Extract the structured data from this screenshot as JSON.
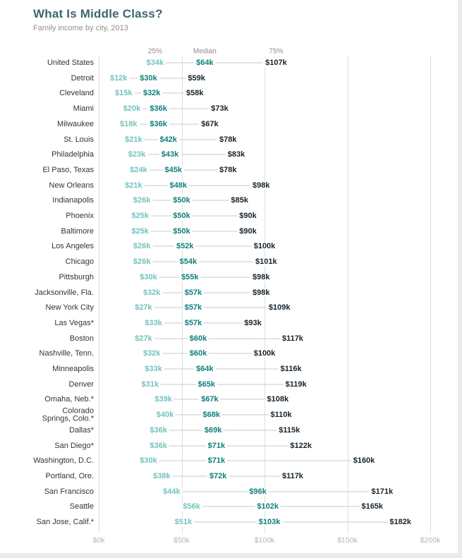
{
  "title": "What Is Middle Class?",
  "subtitle": "Family income by city, 2013",
  "chart_data": {
    "type": "scatter",
    "variant": "dot-range-plot",
    "column_headers": [
      "25%",
      "Median",
      "75%"
    ],
    "value_format": "$[value]k",
    "unit": "thousand USD per year",
    "xlim": [
      0,
      200
    ],
    "x_ticks": [
      "$0k",
      "$50k",
      "$100k",
      "$150k",
      "$200k"
    ],
    "x_tick_values": [
      0,
      50,
      100,
      150,
      200
    ],
    "grid": "vertical",
    "colors": {
      "p25": "#72c3bd",
      "median": "#0d7f7b",
      "p75": "#16232c",
      "connector": "#c9c9c9",
      "grid": "#dedede",
      "title": "#3e6570",
      "subtitle": "#8f8f8f"
    },
    "rows": [
      {
        "city": "United States",
        "p25": 34,
        "median": 64,
        "p75": 107
      },
      {
        "city": "Detroit",
        "p25": 12,
        "median": 30,
        "p75": 59
      },
      {
        "city": "Cleveland",
        "p25": 15,
        "median": 32,
        "p75": 58
      },
      {
        "city": "Miami",
        "p25": 20,
        "median": 36,
        "p75": 73
      },
      {
        "city": "Milwaukee",
        "p25": 18,
        "median": 36,
        "p75": 67
      },
      {
        "city": "St. Louis",
        "p25": 21,
        "median": 42,
        "p75": 78
      },
      {
        "city": "Philadelphia",
        "p25": 23,
        "median": 43,
        "p75": 83
      },
      {
        "city": "El Paso, Texas",
        "p25": 24,
        "median": 45,
        "p75": 78
      },
      {
        "city": "New Orleans",
        "p25": 21,
        "median": 48,
        "p75": 98
      },
      {
        "city": "Indianapolis",
        "p25": 26,
        "median": 50,
        "p75": 85
      },
      {
        "city": "Phoenix",
        "p25": 25,
        "median": 50,
        "p75": 90
      },
      {
        "city": "Baltimore",
        "p25": 25,
        "median": 50,
        "p75": 90
      },
      {
        "city": "Los Angeles",
        "p25": 26,
        "median": 52,
        "p75": 100
      },
      {
        "city": "Chicago",
        "p25": 26,
        "median": 54,
        "p75": 101
      },
      {
        "city": "Pittsburgh",
        "p25": 30,
        "median": 55,
        "p75": 98
      },
      {
        "city": "Jacksonville, Fla.",
        "p25": 32,
        "median": 57,
        "p75": 98
      },
      {
        "city": "New York City",
        "p25": 27,
        "median": 57,
        "p75": 109
      },
      {
        "city": "Las Vegas*",
        "p25": 33,
        "median": 57,
        "p75": 93
      },
      {
        "city": "Boston",
        "p25": 27,
        "median": 60,
        "p75": 117
      },
      {
        "city": "Nashville, Tenn.",
        "p25": 32,
        "median": 60,
        "p75": 100
      },
      {
        "city": "Minneapolis",
        "p25": 33,
        "median": 64,
        "p75": 116
      },
      {
        "city": "Denver",
        "p25": 31,
        "median": 65,
        "p75": 119
      },
      {
        "city": "Omaha, Neb.*",
        "p25": 39,
        "median": 67,
        "p75": 108
      },
      {
        "city": "Colorado Springs, Colo.*",
        "display_lines": [
          "Colorado",
          "Springs, Colo.*"
        ],
        "p25": 40,
        "median": 68,
        "p75": 110
      },
      {
        "city": "Dallas*",
        "p25": 36,
        "median": 69,
        "p75": 115
      },
      {
        "city": "San Diego*",
        "p25": 36,
        "median": 71,
        "p75": 122
      },
      {
        "city": "Washington, D.C.",
        "p25": 30,
        "median": 71,
        "p75": 160
      },
      {
        "city": "Portland, Ore.",
        "p25": 38,
        "median": 72,
        "p75": 117
      },
      {
        "city": "San Francisco",
        "p25": 44,
        "median": 96,
        "p75": 171
      },
      {
        "city": "Seattle",
        "p25": 56,
        "median": 102,
        "p75": 165
      },
      {
        "city": "San Jose, Calif.*",
        "p25": 51,
        "median": 103,
        "p75": 182
      }
    ]
  }
}
